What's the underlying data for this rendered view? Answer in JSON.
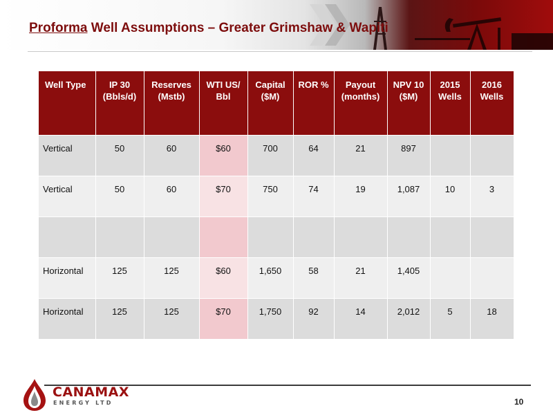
{
  "slide": {
    "title_underlined": "Proforma",
    "title_rest": " Well Assumptions – Greater Grimshaw & Wapiti",
    "page_number": "10"
  },
  "logo": {
    "name": "CANAMAX",
    "subtitle": "ENERGY LTD"
  },
  "table": {
    "headers": [
      [
        "Well Type",
        ""
      ],
      [
        "IP 30",
        "(Bbls/d)"
      ],
      [
        "Reserves",
        "(Mstb)"
      ],
      [
        "WTI US/",
        "Bbl"
      ],
      [
        "Capital",
        "($M)"
      ],
      [
        "ROR %",
        ""
      ],
      [
        "Payout",
        "(months)"
      ],
      [
        "NPV 10",
        "($M)"
      ],
      [
        "2015",
        "Wells"
      ],
      [
        "2016",
        "Wells"
      ]
    ],
    "rows": [
      [
        "Vertical",
        "50",
        "60",
        "$60",
        "700",
        "64",
        "21",
        "897",
        "",
        ""
      ],
      [
        "Vertical",
        "50",
        "60",
        "$70",
        "750",
        "74",
        "19",
        "1,087",
        "10",
        "3"
      ],
      [
        "",
        "",
        "",
        "",
        "",
        "",
        "",
        "",
        "",
        ""
      ],
      [
        "Horizontal",
        "125",
        "125",
        "$60",
        "1,650",
        "58",
        "21",
        "1,405",
        "",
        ""
      ],
      [
        "Horizontal",
        "125",
        "125",
        "$70",
        "1,750",
        "92",
        "14",
        "2,012",
        "5",
        "18"
      ]
    ]
  }
}
